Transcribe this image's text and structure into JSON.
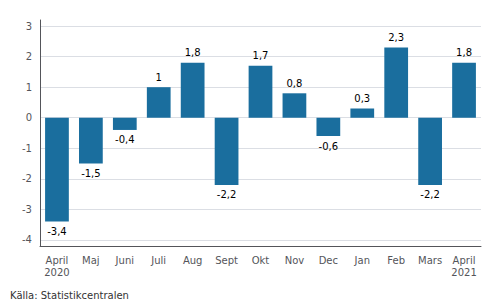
{
  "chart_data": {
    "type": "bar",
    "categories": [
      "April\n2020",
      "Maj",
      "Juni",
      "Juli",
      "Aug",
      "Sept",
      "Okt",
      "Nov",
      "Dec",
      "Jan",
      "Feb",
      "Mars",
      "April\n2021"
    ],
    "values": [
      -3.4,
      -1.5,
      -0.4,
      1.0,
      1.8,
      -2.2,
      1.7,
      0.8,
      -0.6,
      0.3,
      2.3,
      -2.2,
      1.8
    ],
    "value_labels": [
      "-3,4",
      "-1,5",
      "-0,4",
      "1",
      "1,8",
      "-2,2",
      "1,7",
      "0,8",
      "-0,6",
      "0,3",
      "2,3",
      "-2,2",
      "1,8"
    ],
    "data_labels": true,
    "color": "#1a6e9e",
    "ylim": [
      -4.2,
      3.2
    ],
    "yticks": [
      -4,
      -3,
      -2,
      -1,
      0,
      1,
      2,
      3
    ],
    "grid": true,
    "annotations": [
      "Källa: Statistikcentralen"
    ]
  }
}
